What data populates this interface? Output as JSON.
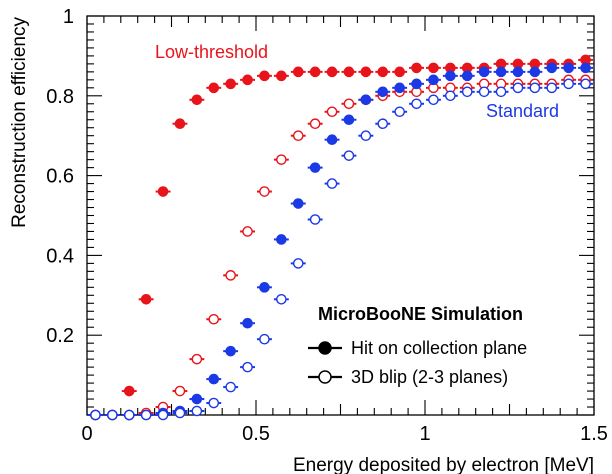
{
  "chart_data": {
    "type": "scatter",
    "xlabel": "Energy deposited by electron [MeV]",
    "ylabel": "Reconstruction efficiency",
    "xlim": [
      0,
      1.5
    ],
    "ylim": [
      0,
      1
    ],
    "x_ticks": [
      "0",
      "0.5",
      "1",
      "1.5"
    ],
    "y_ticks": [
      "0.2",
      "0.4",
      "0.6",
      "0.8",
      "1"
    ],
    "grid": false,
    "legend": {
      "title": "MicroBooNE Simulation",
      "entries": [
        "Hit on collection plane",
        "3D blip (2-3 planes)"
      ],
      "placement": "bottom-right"
    },
    "annotations": [
      {
        "text": "Low-threshold",
        "color": "#e8141b"
      },
      {
        "text": "Standard",
        "color": "#1c39e6"
      }
    ],
    "x_bin_width": 0.05,
    "series": [
      {
        "group": "Low-threshold",
        "marker": "filled",
        "color": "#e8141b",
        "x": [
          0.025,
          0.075,
          0.125,
          0.175,
          0.225,
          0.275,
          0.325,
          0.375,
          0.425,
          0.475,
          0.525,
          0.575,
          0.625,
          0.675,
          0.725,
          0.775,
          0.825,
          0.875,
          0.925,
          0.975,
          1.025,
          1.075,
          1.125,
          1.175,
          1.225,
          1.275,
          1.325,
          1.375,
          1.425,
          1.475
        ],
        "y": [
          0.0,
          0.0,
          0.06,
          0.29,
          0.56,
          0.73,
          0.79,
          0.82,
          0.83,
          0.84,
          0.85,
          0.85,
          0.86,
          0.86,
          0.86,
          0.86,
          0.86,
          0.86,
          0.86,
          0.87,
          0.87,
          0.87,
          0.87,
          0.87,
          0.88,
          0.88,
          0.88,
          0.88,
          0.88,
          0.89
        ]
      },
      {
        "group": "Low-threshold",
        "marker": "open",
        "color": "#e8141b",
        "x": [
          0.025,
          0.075,
          0.125,
          0.175,
          0.225,
          0.275,
          0.325,
          0.375,
          0.425,
          0.475,
          0.525,
          0.575,
          0.625,
          0.675,
          0.725,
          0.775,
          0.825,
          0.875,
          0.925,
          0.975,
          1.025,
          1.075,
          1.125,
          1.175,
          1.225,
          1.275,
          1.325,
          1.375,
          1.425,
          1.475
        ],
        "y": [
          0.0,
          0.0,
          0.0,
          0.005,
          0.02,
          0.06,
          0.14,
          0.24,
          0.35,
          0.46,
          0.56,
          0.64,
          0.7,
          0.73,
          0.76,
          0.78,
          0.79,
          0.8,
          0.81,
          0.81,
          0.82,
          0.82,
          0.82,
          0.83,
          0.83,
          0.83,
          0.83,
          0.83,
          0.84,
          0.84
        ]
      },
      {
        "group": "Standard",
        "marker": "filled",
        "color": "#1c39e6",
        "x": [
          0.025,
          0.075,
          0.125,
          0.175,
          0.225,
          0.275,
          0.325,
          0.375,
          0.425,
          0.475,
          0.525,
          0.575,
          0.625,
          0.675,
          0.725,
          0.775,
          0.825,
          0.875,
          0.925,
          0.975,
          1.025,
          1.075,
          1.125,
          1.175,
          1.225,
          1.275,
          1.325,
          1.375,
          1.425,
          1.475
        ],
        "y": [
          0.0,
          0.0,
          0.0,
          0.0,
          0.005,
          0.01,
          0.04,
          0.09,
          0.16,
          0.23,
          0.32,
          0.44,
          0.53,
          0.62,
          0.69,
          0.74,
          0.79,
          0.81,
          0.82,
          0.83,
          0.84,
          0.85,
          0.85,
          0.86,
          0.86,
          0.86,
          0.86,
          0.87,
          0.87,
          0.87
        ]
      },
      {
        "group": "Standard",
        "marker": "open",
        "color": "#1c39e6",
        "x": [
          0.025,
          0.075,
          0.125,
          0.175,
          0.225,
          0.275,
          0.325,
          0.375,
          0.425,
          0.475,
          0.525,
          0.575,
          0.625,
          0.675,
          0.725,
          0.775,
          0.825,
          0.875,
          0.925,
          0.975,
          1.025,
          1.075,
          1.125,
          1.175,
          1.225,
          1.275,
          1.325,
          1.375,
          1.425,
          1.475
        ],
        "y": [
          0.0,
          0.0,
          0.0,
          0.0,
          0.0,
          0.005,
          0.01,
          0.03,
          0.07,
          0.12,
          0.19,
          0.29,
          0.38,
          0.49,
          0.58,
          0.65,
          0.7,
          0.73,
          0.76,
          0.78,
          0.79,
          0.8,
          0.81,
          0.81,
          0.81,
          0.82,
          0.82,
          0.82,
          0.83,
          0.83
        ]
      }
    ]
  }
}
